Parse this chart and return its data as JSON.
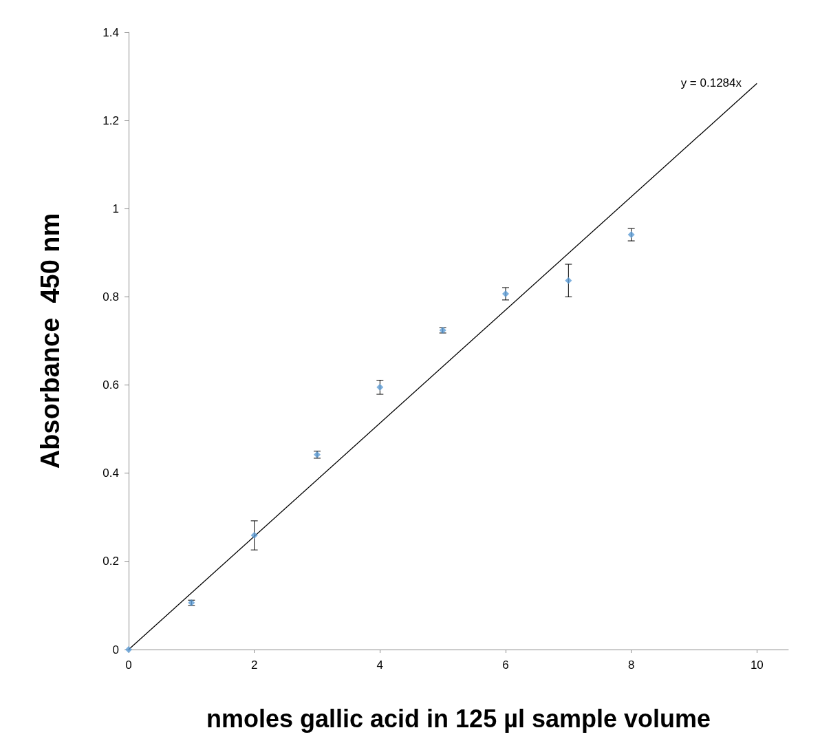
{
  "chart_data": {
    "type": "scatter",
    "xlabel": "nmoles gallic acid in 125 µl sample volume",
    "ylabel": "Absorbance  450 nm",
    "annotations": [
      "y = 0.1284x"
    ],
    "series": [
      {
        "color": "#5b9bd5",
        "x": [
          0,
          1,
          2,
          3,
          4,
          5,
          6,
          7,
          8
        ],
        "values": [
          0,
          0.106,
          0.259,
          0.442,
          0.595,
          0.724,
          0.807,
          0.837,
          0.941
        ],
        "errors": [
          null,
          0.006,
          0.033,
          0.008,
          0.016,
          0.006,
          0.014,
          0.037,
          0.014
        ]
      },
      {
        "type": "line",
        "color": "#000000",
        "marker": "none",
        "x": [
          0,
          10
        ],
        "values": [
          0,
          1.284
        ]
      }
    ],
    "marker": "diamond",
    "grid": false,
    "xlim": [
      0,
      10.5
    ],
    "xticks": [
      0,
      2,
      4,
      6,
      8,
      10
    ],
    "ylim": [
      0,
      1.4
    ],
    "yticks": [
      0,
      0.2,
      0.4,
      0.6,
      0.8,
      1,
      1.2,
      1.4
    ]
  }
}
